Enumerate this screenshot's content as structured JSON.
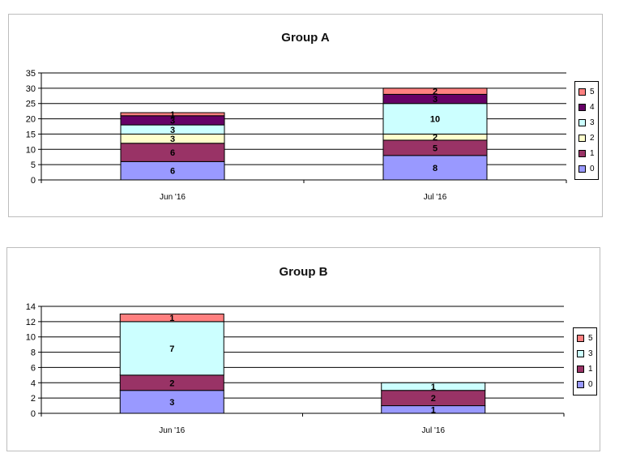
{
  "colors": {
    "0": "#9999ff",
    "1": "#993366",
    "2": "#ffffcc",
    "3": "#ccffff",
    "4": "#660066",
    "5": "#ff8080"
  },
  "chart_data": [
    {
      "type": "bar",
      "stacked": true,
      "title": "Group A",
      "categories": [
        "Jun '16",
        "Jul '16"
      ],
      "ylim": [
        0,
        35
      ],
      "yticks": [
        0,
        5,
        10,
        15,
        20,
        25,
        30,
        35
      ],
      "grid": true,
      "legend_position": "right",
      "series": [
        {
          "name": "0",
          "values": [
            6,
            8
          ]
        },
        {
          "name": "1",
          "values": [
            6,
            5
          ]
        },
        {
          "name": "2",
          "values": [
            3,
            2
          ]
        },
        {
          "name": "3",
          "values": [
            3,
            10
          ]
        },
        {
          "name": "4",
          "values": [
            3,
            3
          ]
        },
        {
          "name": "5",
          "values": [
            1,
            2
          ]
        }
      ]
    },
    {
      "type": "bar",
      "stacked": true,
      "title": "Group B",
      "categories": [
        "Jun '16",
        "Jul '16"
      ],
      "ylim": [
        0,
        14
      ],
      "yticks": [
        0,
        2,
        4,
        6,
        8,
        10,
        12,
        14
      ],
      "grid": true,
      "legend_position": "right",
      "series": [
        {
          "name": "0",
          "values": [
            3,
            1
          ]
        },
        {
          "name": "1",
          "values": [
            2,
            2
          ]
        },
        {
          "name": "3",
          "values": [
            7,
            1
          ]
        },
        {
          "name": "5",
          "values": [
            1,
            0
          ]
        }
      ]
    }
  ]
}
